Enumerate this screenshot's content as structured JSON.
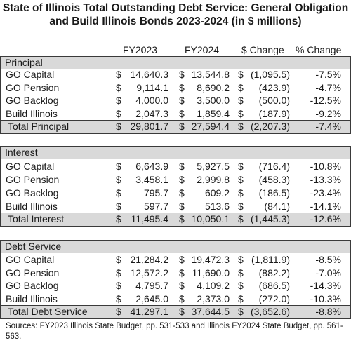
{
  "title": {
    "line1": "State of Illinois Total Outstanding Debt Service: General Obligation",
    "line2": "and Build Illinois Bonds  2023-2024 (in $ millions)"
  },
  "columns": {
    "fy2023": "FY2023",
    "fy2024": "FY2024",
    "change": "$ Change",
    "pct": "% Change"
  },
  "dollar_sign": "$",
  "sections": [
    {
      "title": "Principal",
      "rows": [
        {
          "label": "GO Capital",
          "fy2023": "14,640.3",
          "fy2024": "13,544.8",
          "change": "(1,095.5)",
          "pct": "-7.5%"
        },
        {
          "label": "GO Pension",
          "fy2023": "9,114.1",
          "fy2024": "8,690.2",
          "change": "(423.9)",
          "pct": "-4.7%"
        },
        {
          "label": "GO Backlog",
          "fy2023": "4,000.0",
          "fy2024": "3,500.0",
          "change": "(500.0)",
          "pct": "-12.5%"
        },
        {
          "label": "Build Illinois",
          "fy2023": "2,047.3",
          "fy2024": "1,859.4",
          "change": "(187.9)",
          "pct": "-9.2%"
        }
      ],
      "total": {
        "label": "Total Principal",
        "fy2023": "29,801.7",
        "fy2024": "27,594.4",
        "change": "(2,207.3)",
        "pct": "-7.4%"
      }
    },
    {
      "title": "Interest",
      "rows": [
        {
          "label": "GO Capital",
          "fy2023": "6,643.9",
          "fy2024": "5,927.5",
          "change": "(716.4)",
          "pct": "-10.8%"
        },
        {
          "label": "GO Pension",
          "fy2023": "3,458.1",
          "fy2024": "2,999.8",
          "change": "(458.3)",
          "pct": "-13.3%"
        },
        {
          "label": "GO Backlog",
          "fy2023": "795.7",
          "fy2024": "609.2",
          "change": "(186.5)",
          "pct": "-23.4%"
        },
        {
          "label": "Build Illinois",
          "fy2023": "597.7",
          "fy2024": "513.6",
          "change": "(84.1)",
          "pct": "-14.1%"
        }
      ],
      "total": {
        "label": "Total Interest",
        "fy2023": "11,495.4",
        "fy2024": "10,050.1",
        "change": "(1,445.3)",
        "pct": "-12.6%"
      }
    },
    {
      "title": "Debt Service",
      "rows": [
        {
          "label": "GO Capital",
          "fy2023": "21,284.2",
          "fy2024": "19,472.3",
          "change": "(1,811.9)",
          "pct": "-8.5%"
        },
        {
          "label": "GO Pension",
          "fy2023": "12,572.2",
          "fy2024": "11,690.0",
          "change": "(882.2)",
          "pct": "-7.0%"
        },
        {
          "label": "GO Backlog",
          "fy2023": "4,795.7",
          "fy2024": "4,109.2",
          "change": "(686.5)",
          "pct": "-14.3%"
        },
        {
          "label": "Build Illinois",
          "fy2023": "2,645.0",
          "fy2024": "2,373.0",
          "change": "(272.0)",
          "pct": "-10.3%"
        }
      ],
      "total": {
        "label": "Total Debt Service",
        "fy2023": "41,297.1",
        "fy2024": "37,644.5",
        "change": "(3,652.6)",
        "pct": "-8.8%"
      }
    }
  ],
  "source": "Sources:  FY2023 Illinois State Budget, pp. 531-533 and Illinois FY2024 State Budget, pp. 561-563."
}
